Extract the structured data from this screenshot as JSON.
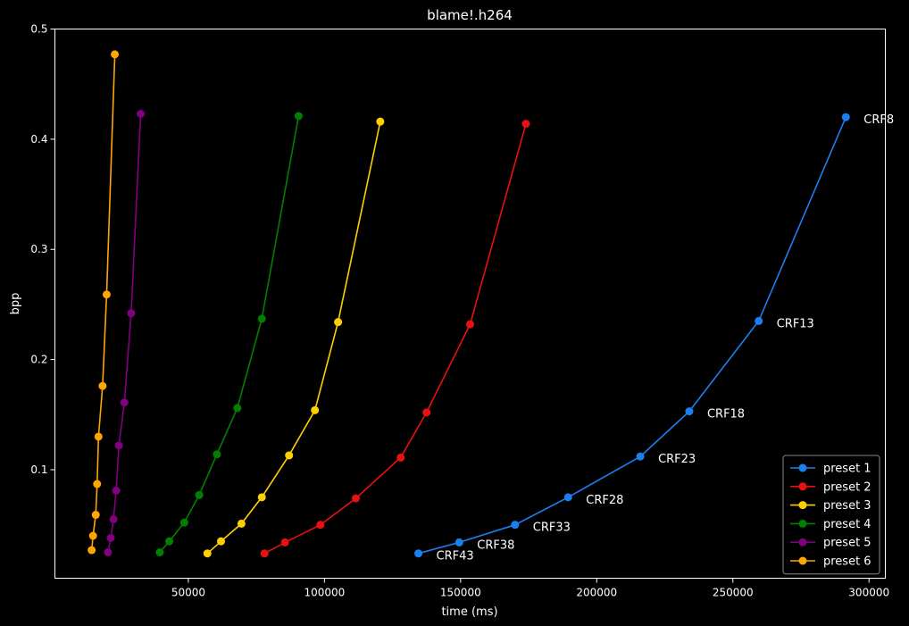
{
  "chart_data": {
    "type": "line",
    "title": "blame!.h264",
    "xlabel": "time (ms)",
    "ylabel": "bpp",
    "xlim": [
      1000,
      306000
    ],
    "ylim": [
      0.0015,
      0.5
    ],
    "xticks": [
      50000,
      100000,
      150000,
      200000,
      250000,
      300000
    ],
    "xtick_labels": [
      "50000",
      "100000",
      "150000",
      "200000",
      "250000",
      "300000"
    ],
    "yticks": [
      0.1,
      0.2,
      0.3,
      0.4,
      0.5
    ],
    "ytick_labels": [
      "0.1",
      "0.2",
      "0.3",
      "0.4",
      "0.5"
    ],
    "grid": false,
    "legend": "bottom-right",
    "background": "#000000",
    "point_labels": [
      "CRF8",
      "CRF13",
      "CRF18",
      "CRF23",
      "CRF28",
      "CRF33",
      "CRF38",
      "CRF43"
    ],
    "series": [
      {
        "name": "preset 1",
        "color": "#1a80f0",
        "x": [
          291500,
          259500,
          234000,
          216000,
          189500,
          170000,
          149500,
          134500
        ],
        "y": [
          0.42,
          0.235,
          0.153,
          0.112,
          0.075,
          0.05,
          0.034,
          0.024
        ]
      },
      {
        "name": "preset 2",
        "color": "#e81010",
        "x": [
          174000,
          153500,
          137500,
          128000,
          111500,
          98500,
          85500,
          78000
        ],
        "y": [
          0.414,
          0.232,
          0.152,
          0.111,
          0.074,
          0.05,
          0.034,
          0.024
        ]
      },
      {
        "name": "preset 3",
        "color": "#ffd000",
        "x": [
          120500,
          105000,
          96500,
          87000,
          77000,
          69500,
          62000,
          57000
        ],
        "y": [
          0.416,
          0.234,
          0.154,
          0.113,
          0.075,
          0.051,
          0.035,
          0.024
        ]
      },
      {
        "name": "preset 4",
        "color": "#008000",
        "x": [
          90500,
          77000,
          68000,
          60500,
          54000,
          48500,
          43000,
          39500
        ],
        "y": [
          0.421,
          0.237,
          0.156,
          0.114,
          0.077,
          0.052,
          0.035,
          0.025
        ]
      },
      {
        "name": "preset 5",
        "color": "#800080",
        "x": [
          32500,
          29000,
          26500,
          24500,
          23500,
          22500,
          21500,
          20500
        ],
        "y": [
          0.423,
          0.242,
          0.161,
          0.122,
          0.081,
          0.055,
          0.038,
          0.025
        ]
      },
      {
        "name": "preset 6",
        "color": "#ffa500",
        "x": [
          23000,
          20000,
          18500,
          17000,
          16500,
          16000,
          15000,
          14500
        ],
        "y": [
          0.477,
          0.259,
          0.176,
          0.13,
          0.087,
          0.059,
          0.04,
          0.027
        ]
      }
    ]
  }
}
